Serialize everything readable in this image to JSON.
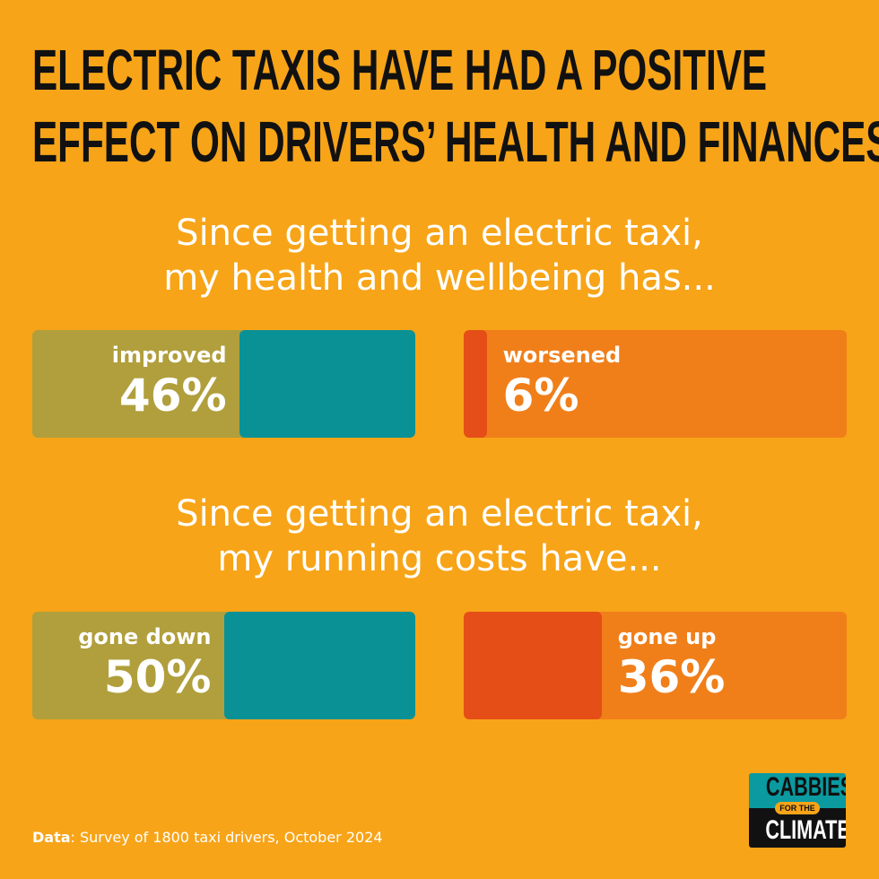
{
  "chart_data": {
    "type": "bar",
    "title": [
      "ELECTRIC TAXIS HAVE HAD A POSITIVE",
      "EFFECT ON DRIVERS’ HEALTH AND FINANCES"
    ],
    "groups": [
      {
        "question": [
          "Since getting an electric taxi,",
          "my health and wellbeing has..."
        ],
        "bars": [
          {
            "label": "improved",
            "value": 46,
            "display": "46%",
            "fill_color": "#0a9196",
            "track_color": "#b09f3c",
            "fill_side": "right"
          },
          {
            "label": "worsened",
            "value": 6,
            "display": "6%",
            "fill_color": "#e54e17",
            "track_color": "#f07f1a",
            "fill_side": "left"
          }
        ]
      },
      {
        "question": [
          "Since getting an electric taxi,",
          "my running costs have..."
        ],
        "bars": [
          {
            "label": "gone down",
            "value": 50,
            "display": "50%",
            "fill_color": "#0a9196",
            "track_color": "#b09f3c",
            "fill_side": "right"
          },
          {
            "label": "gone up",
            "value": 36,
            "display": "36%",
            "fill_color": "#e54e17",
            "track_color": "#f07f1a",
            "fill_side": "left"
          }
        ]
      }
    ],
    "ylim": [
      0,
      100
    ]
  },
  "footer": {
    "bold": "Data",
    "text": ": Survey of 1800 taxi drivers, October 2024"
  },
  "logo": {
    "top": "CABBIES",
    "mid": "FOR THE",
    "bottom": "CLIMATE"
  },
  "colors": {
    "background": "#f7a418"
  }
}
